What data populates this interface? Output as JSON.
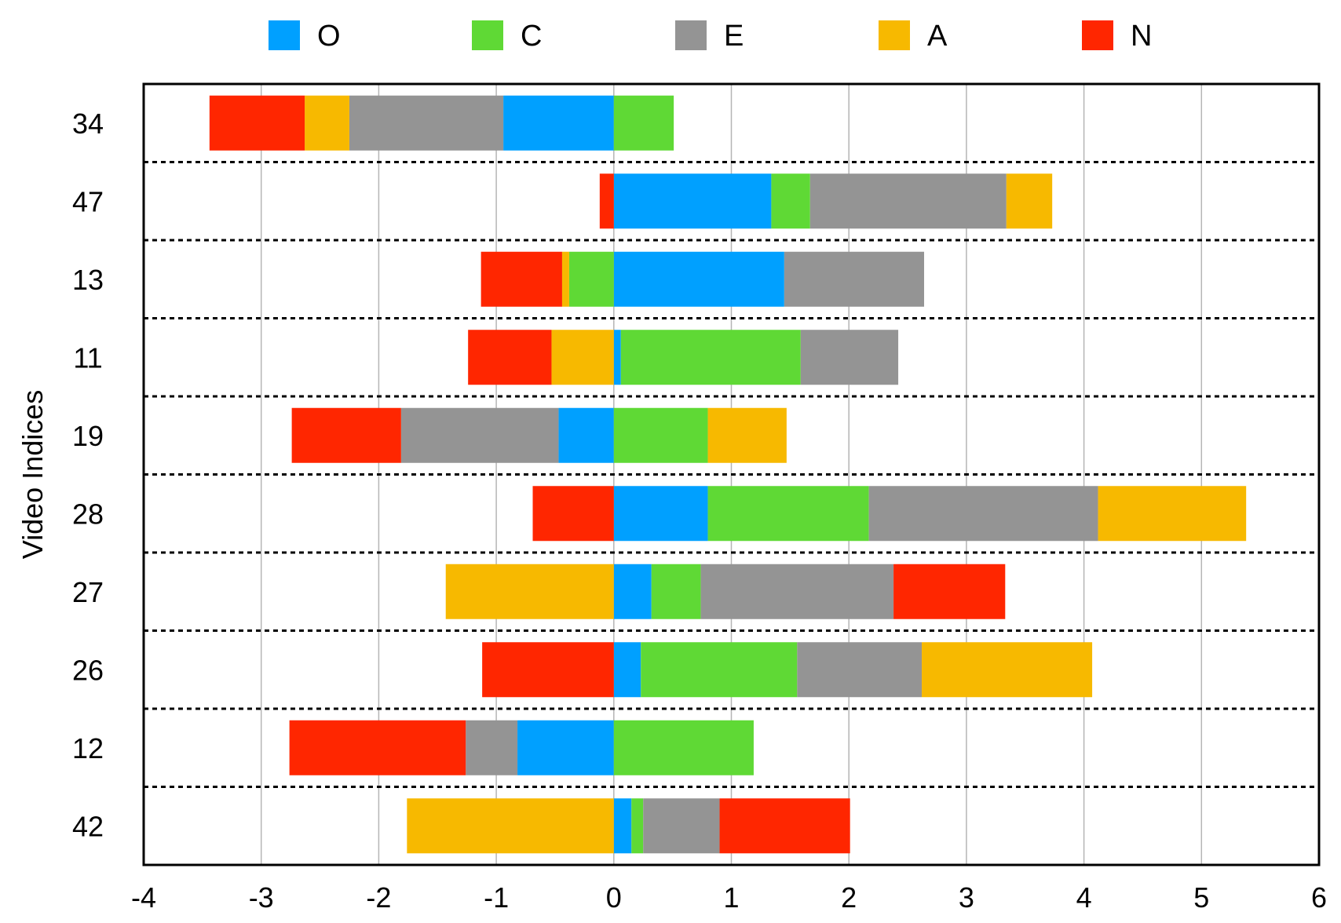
{
  "chart_data": {
    "type": "bar",
    "orientation": "horizontal",
    "stacking": "diverging",
    "xlabel": "",
    "ylabel": "Video Indices",
    "xlim": [
      -4,
      6
    ],
    "x_ticks": [
      "-4",
      "-3",
      "-2",
      "-1",
      "0",
      "1",
      "2",
      "3",
      "4",
      "5",
      "6"
    ],
    "grid": "vertical",
    "row_separators": "dotted",
    "legend_position": "top",
    "categories": [
      "34",
      "47",
      "13",
      "11",
      "19",
      "28",
      "27",
      "26",
      "12",
      "42"
    ],
    "series": [
      {
        "name": "O",
        "color": "#00A0FF",
        "values": [
          -0.94,
          1.34,
          1.45,
          0.06,
          -0.47,
          0.8,
          0.32,
          0.23,
          -0.82,
          0.15
        ]
      },
      {
        "name": "C",
        "color": "#5FD935",
        "values": [
          0.51,
          0.33,
          -0.38,
          1.53,
          0.8,
          1.37,
          0.42,
          1.33,
          1.19,
          0.1
        ]
      },
      {
        "name": "E",
        "color": "#949494",
        "values": [
          -1.31,
          1.67,
          1.19,
          0.83,
          -1.34,
          1.95,
          1.64,
          1.06,
          -0.44,
          0.65
        ]
      },
      {
        "name": "A",
        "color": "#F7B900",
        "values": [
          -0.38,
          0.39,
          -0.06,
          -0.53,
          0.67,
          1.26,
          -1.43,
          1.45,
          0.0,
          -1.76
        ]
      },
      {
        "name": "N",
        "color": "#FF2600",
        "values": [
          -0.81,
          -0.12,
          -0.69,
          -0.71,
          -0.93,
          -0.69,
          0.95,
          -1.12,
          -1.5,
          1.11
        ]
      }
    ]
  }
}
